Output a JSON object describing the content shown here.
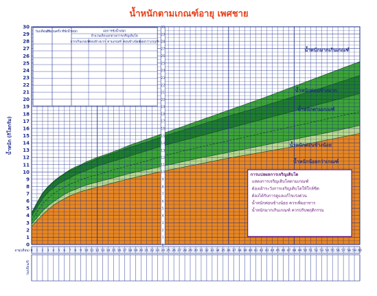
{
  "title": "น้ำหนักตามเกณฑ์อายุ เพศชาย",
  "colors": {
    "title": "#e8401a",
    "grid": "#1b2a8a",
    "orange": "#e8861f",
    "light_green": "#b9d98a",
    "mid_green": "#3da534",
    "dark_green": "#1e7d2a",
    "white": "#ffffff"
  },
  "chart_data": {
    "type": "area",
    "title": "น้ำหนักตามเกณฑ์อายุ เพศชาย",
    "ylabel": "น้ำหนัก (กิโลกรัม)",
    "xlabel_row1": "อายุ(เดือน)",
    "xlabel_row2": "วัน/เดือน/ปี",
    "ylim": [
      0,
      30
    ],
    "xlim": [
      0,
      60
    ],
    "y_ticks": [
      0,
      1,
      2,
      3,
      4,
      5,
      6,
      7,
      8,
      9,
      10,
      11,
      12,
      13,
      14,
      15,
      16,
      17,
      18,
      19,
      20,
      21,
      22,
      23,
      24,
      25,
      26,
      27,
      28,
      29,
      30
    ],
    "x_ticks": [
      0,
      1,
      2,
      3,
      4,
      5,
      6,
      7,
      8,
      9,
      10,
      11,
      12,
      13,
      14,
      15,
      16,
      17,
      18,
      19,
      20,
      21,
      22,
      23,
      24,
      25,
      26,
      27,
      28,
      29,
      30,
      31,
      32,
      33,
      34,
      35,
      36,
      37,
      38,
      39,
      40,
      41,
      42,
      43,
      44,
      45,
      46,
      47,
      48,
      49,
      50,
      51,
      52,
      53,
      54,
      55,
      56,
      57,
      58,
      59,
      60
    ],
    "ages": [
      0,
      1,
      2,
      3,
      4,
      5,
      6,
      7,
      8,
      9,
      10,
      11,
      12,
      15,
      18,
      21,
      24,
      30,
      36,
      42,
      48,
      54,
      60
    ],
    "curves": {
      "p_low": [
        2.5,
        3.3,
        4.1,
        4.8,
        5.4,
        5.9,
        6.3,
        6.7,
        7.0,
        7.3,
        7.5,
        7.7,
        7.9,
        8.5,
        9.1,
        9.6,
        10.1,
        11.0,
        11.9,
        12.7,
        13.5,
        14.4,
        15.3
      ],
      "p_lowmid": [
        2.8,
        3.7,
        4.6,
        5.3,
        5.9,
        6.4,
        6.9,
        7.3,
        7.6,
        7.9,
        8.2,
        8.4,
        8.6,
        9.2,
        9.8,
        10.3,
        10.8,
        11.8,
        12.7,
        13.6,
        14.5,
        15.4,
        16.4
      ],
      "p_median": [
        3.3,
        4.5,
        5.6,
        6.4,
        7.0,
        7.5,
        7.9,
        8.3,
        8.6,
        8.9,
        9.2,
        9.4,
        9.6,
        10.3,
        10.9,
        11.5,
        12.2,
        13.3,
        14.3,
        15.3,
        16.3,
        17.3,
        18.3
      ],
      "p_highmid": [
        3.9,
        5.1,
        6.3,
        7.2,
        7.8,
        8.4,
        8.8,
        9.2,
        9.6,
        9.9,
        10.2,
        10.5,
        10.8,
        11.5,
        12.2,
        12.9,
        13.6,
        14.8,
        16.0,
        17.2,
        18.4,
        19.6,
        20.8
      ],
      "p_high": [
        4.3,
        5.6,
        7.0,
        7.9,
        8.6,
        9.2,
        9.7,
        10.2,
        10.5,
        10.9,
        11.2,
        11.5,
        11.8,
        12.6,
        13.4,
        14.1,
        14.9,
        16.3,
        17.7,
        19.0,
        20.4,
        21.8,
        23.3
      ],
      "p_top": [
        4.4,
        5.8,
        7.1,
        8.0,
        8.7,
        9.3,
        9.8,
        10.3,
        10.7,
        11.0,
        11.4,
        11.7,
        12.0,
        12.8,
        13.7,
        14.5,
        15.3,
        16.9,
        18.5,
        20.1,
        21.8,
        23.5,
        25.2
      ]
    },
    "band_labels": [
      "น้ำหนักมากเกินเกณฑ์",
      "น้ำหนักค่อนข้างมาก",
      "น้ำหนักตามเกณฑ์",
      "น้ำหนักค่อนข้างน้อย",
      "น้ำหนักน้อยกว่าเกณฑ์"
    ]
  },
  "record_table": {
    "col_date": "วัน/เดือน/ปี",
    "col_count": "จำนวนครั้ง ที่ชั่งน้ำหนัก",
    "col_result": "ผลการชั่งน้ำหนัก",
    "col_result_sub": "จำนวนเด็กแยกตามการเจริญเติบโต",
    "sub_cols": [
      "มากเกินเกณฑ์",
      "ค่อนข้างมาก",
      "ตามเกณฑ์",
      "ค่อนข้างน้อย",
      "น้อยกว่าเกณฑ์"
    ]
  },
  "legend": {
    "title": "การแปลผลการเจริญเติบโต",
    "items": [
      "แสดงการเจริญเติบโตตามเกณฑ์",
      "ต้องเฝ้าระวังการเจริญเติบโตให้ใกล้ชิด",
      "ต้องได้รับการดูแลแก้ไขเร่งด่วน",
      "น้ำหนักค่อนข้างน้อย ควรเพิ่มอาหาร",
      "น้ำหนักมากเกินเกณฑ์ ควรปรับพฤติกรรม"
    ]
  }
}
